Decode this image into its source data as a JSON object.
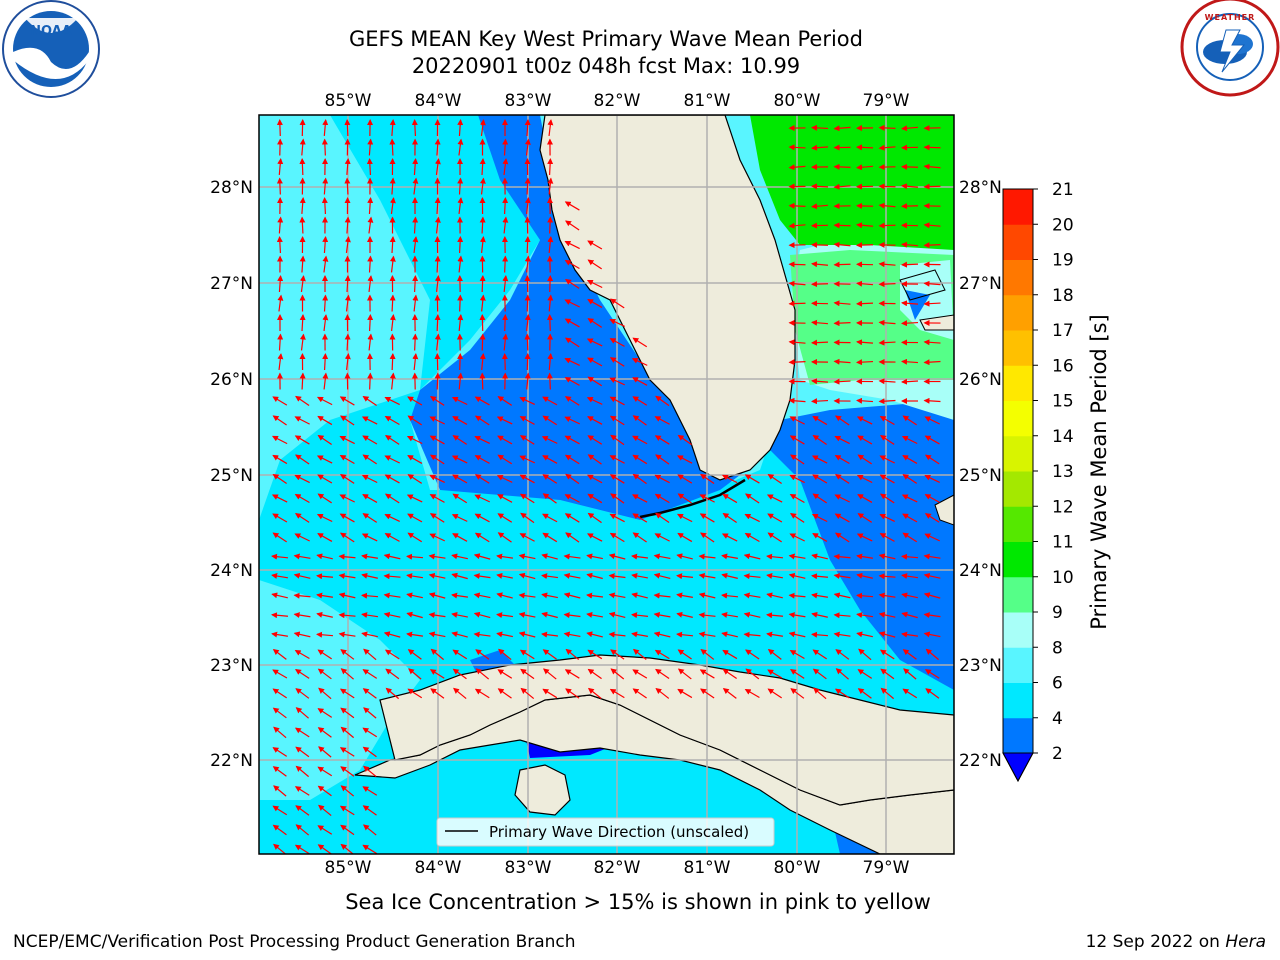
{
  "header": {
    "title_line1": "GEFS MEAN Key West Primary Wave Mean Period",
    "title_line2": "20220901 t00z 048h fcst   Max: 10.99"
  },
  "logos": {
    "left": {
      "text": "NOAA",
      "ring_text": "NATIONAL OCEANIC AND ATMOSPHERIC ADMINISTRATION · U.S. DEPARTMENT OF COMMERCE"
    },
    "right": {
      "ring_text": "NATIONAL WEATHER SERVICE"
    }
  },
  "map": {
    "lon_labels": [
      "85°W",
      "84°W",
      "83°W",
      "82°W",
      "81°W",
      "80°W",
      "79°W"
    ],
    "lat_labels": [
      "28°N",
      "27°N",
      "26°N",
      "25°N",
      "24°N",
      "23°N",
      "22°N"
    ],
    "legend_label": "Primary Wave Direction (unscaled)",
    "colors": {
      "land": "#eeecdc",
      "arrow": "#ff0000",
      "gridline": "#b0b0b0"
    }
  },
  "colorbar": {
    "label": "Primary Wave Mean Period [s]",
    "ticks": [
      "2",
      "4",
      "6",
      "8",
      "9",
      "10",
      "11",
      "12",
      "13",
      "14",
      "15",
      "16",
      "17",
      "18",
      "19",
      "20",
      "21"
    ],
    "colors": [
      "#0078ff",
      "#00e8ff",
      "#59f5ff",
      "#a8fff8",
      "#55ff88",
      "#00e800",
      "#55e800",
      "#a4e800",
      "#d8f400",
      "#f4ff00",
      "#ffe800",
      "#ffc000",
      "#ffa000",
      "#ff7800",
      "#ff4800",
      "#ff1800"
    ],
    "under_color": "#0000ff"
  },
  "footer": {
    "note": "Sea Ice Concentration > 15% is shown in pink to yellow",
    "credit_left": "NCEP/EMC/Verification Post Processing Product Generation Branch",
    "credit_date": "12 Sep 2022 on",
    "credit_host": "Hera"
  }
}
